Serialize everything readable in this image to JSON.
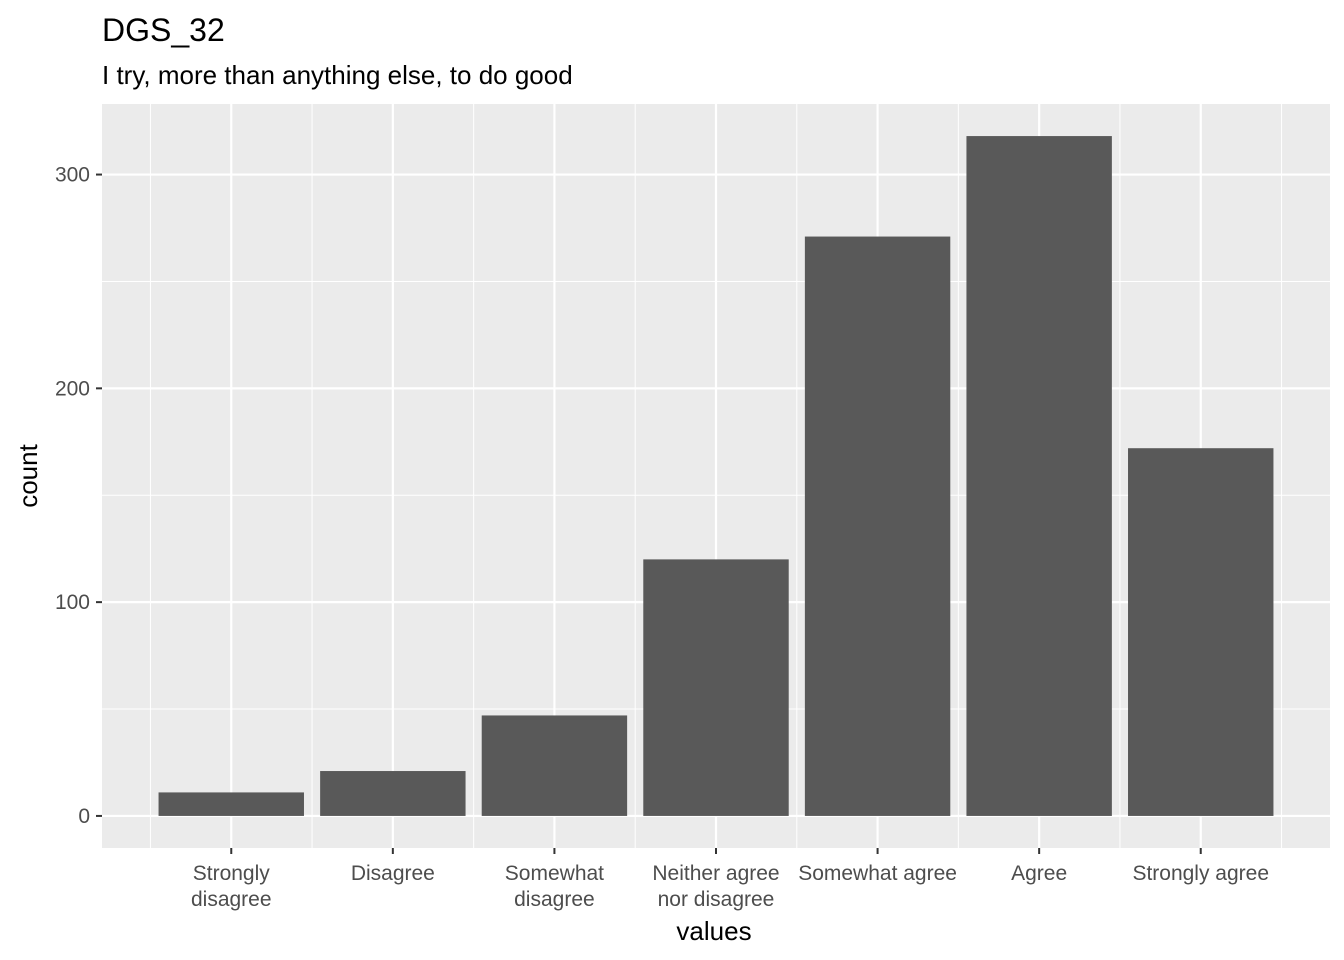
{
  "chart_data": {
    "type": "bar",
    "title": "DGS_32",
    "subtitle": "I try, more than anything else, to do good",
    "xlabel": "values",
    "ylabel": "count",
    "categories": [
      [
        "Strongly",
        "disagree"
      ],
      [
        "Disagree"
      ],
      [
        "Somewhat",
        "disagree"
      ],
      [
        "Neither agree",
        "nor disagree"
      ],
      [
        "Somewhat agree"
      ],
      [
        "Agree"
      ],
      [
        "Strongly agree"
      ]
    ],
    "values": [
      11,
      21,
      47,
      120,
      271,
      318,
      172
    ],
    "ylim": [
      -15,
      333
    ],
    "yticks": [
      0,
      100,
      200,
      300
    ],
    "grid": true,
    "legend": "none",
    "colors": {
      "bar": "#595959",
      "panel": "#ebebeb",
      "grid": "#ffffff",
      "tick_text": "#4d4d4d",
      "tick_mark": "#333333"
    }
  }
}
